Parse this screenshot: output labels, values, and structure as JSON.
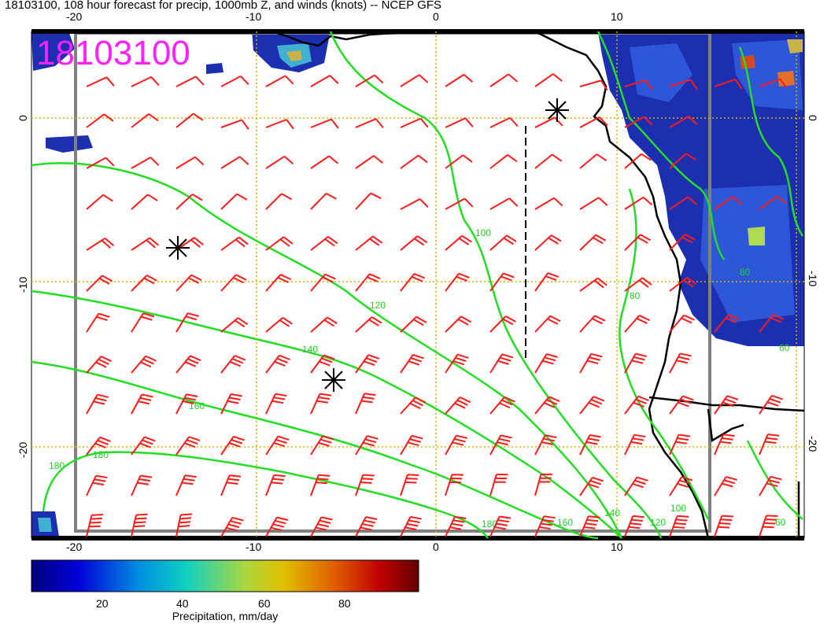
{
  "title": "18103100, 108 hour forecast for precip, 1000mb Z, and winds (knots) -- NCEP GFS",
  "date_stamp": "18103100",
  "axes": {
    "lon_ticks": [
      "-20",
      "-10",
      "0",
      "10"
    ],
    "lat_ticks": [
      "0",
      "-10",
      "-20"
    ]
  },
  "contours": {
    "color": "#22dd22",
    "labels": [
      "100",
      "120",
      "140",
      "160",
      "180",
      "80",
      "60",
      "80",
      "60",
      "100",
      "120",
      "140",
      "160",
      "180",
      "180"
    ]
  },
  "colorbar": {
    "label": "Precipitation, mm/day",
    "ticks": [
      "20",
      "40",
      "60",
      "80"
    ],
    "range": [
      0,
      100
    ]
  },
  "wind_barbs": {
    "color": "#ff1a1a",
    "units": "knots"
  },
  "colors": {
    "precip_low": "#1c2fb0",
    "precip_high": "#b01010",
    "grid": "#d6b400",
    "frame": "#808080"
  }
}
